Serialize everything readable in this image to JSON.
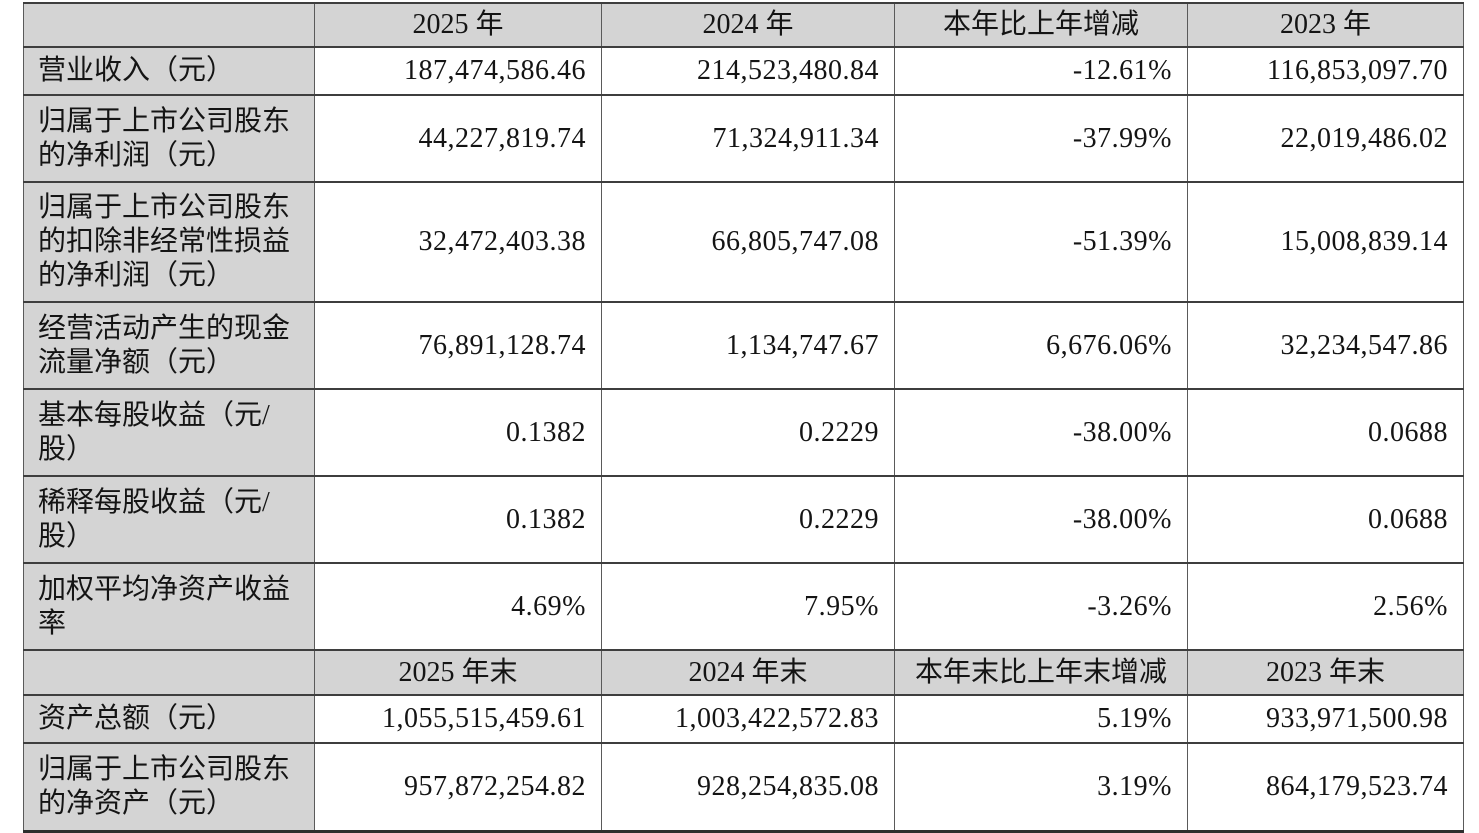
{
  "table": {
    "sections": [
      {
        "header": [
          "",
          "2025 年",
          "2024 年",
          "本年比上年增减",
          "2023 年"
        ],
        "rows": [
          {
            "label": "营业收入（元）",
            "values": [
              "187,474,586.46",
              "214,523,480.84",
              "-12.61%",
              "116,853,097.70"
            ]
          },
          {
            "label": "归属于上市公司股东的净利润（元）",
            "values": [
              "44,227,819.74",
              "71,324,911.34",
              "-37.99%",
              "22,019,486.02"
            ]
          },
          {
            "label": "归属于上市公司股东的扣除非经常性损益的净利润（元）",
            "values": [
              "32,472,403.38",
              "66,805,747.08",
              "-51.39%",
              "15,008,839.14"
            ]
          },
          {
            "label": "经营活动产生的现金流量净额（元）",
            "values": [
              "76,891,128.74",
              "1,134,747.67",
              "6,676.06%",
              "32,234,547.86"
            ]
          },
          {
            "label": "基本每股收益（元/股）",
            "values": [
              "0.1382",
              "0.2229",
              "-38.00%",
              "0.0688"
            ]
          },
          {
            "label": "稀释每股收益（元/股）",
            "values": [
              "0.1382",
              "0.2229",
              "-38.00%",
              "0.0688"
            ]
          },
          {
            "label": "加权平均净资产收益率",
            "values": [
              "4.69%",
              "7.95%",
              "-3.26%",
              "2.56%"
            ]
          }
        ]
      },
      {
        "header": [
          "",
          "2025 年末",
          "2024 年末",
          "本年末比上年末增减",
          "2023 年末"
        ],
        "rows": [
          {
            "label": "资产总额（元）",
            "values": [
              "1,055,515,459.61",
              "1,003,422,572.83",
              "5.19%",
              "933,971,500.98"
            ]
          },
          {
            "label": "归属于上市公司股东的净资产（元）",
            "values": [
              "957,872,254.82",
              "928,254,835.08",
              "3.19%",
              "864,179,523.74"
            ]
          }
        ]
      }
    ],
    "colors": {
      "header_bg": "#d4d4d4",
      "label_bg": "#d4d4d4",
      "border_horizontal": "#3e3e3e",
      "border_vertical": "#5a5a5a",
      "text": "#141414",
      "data_bg": "#ffffff"
    }
  }
}
